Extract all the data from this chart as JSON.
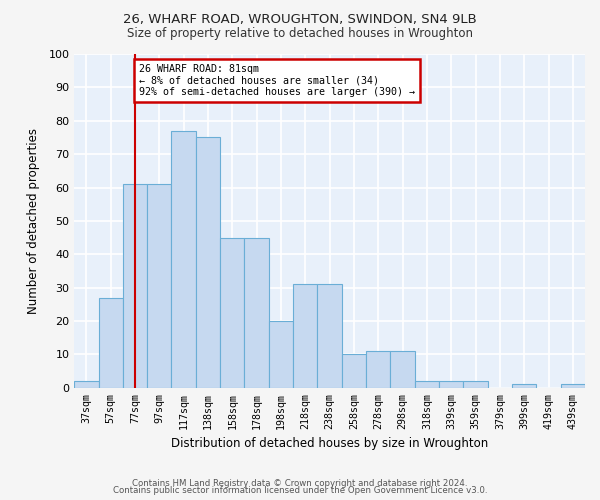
{
  "title1": "26, WHARF ROAD, WROUGHTON, SWINDON, SN4 9LB",
  "title2": "Size of property relative to detached houses in Wroughton",
  "xlabel": "Distribution of detached houses by size in Wroughton",
  "ylabel": "Number of detached properties",
  "categories": [
    "37sqm",
    "57sqm",
    "77sqm",
    "97sqm",
    "117sqm",
    "138sqm",
    "158sqm",
    "178sqm",
    "198sqm",
    "218sqm",
    "238sqm",
    "258sqm",
    "278sqm",
    "298sqm",
    "318sqm",
    "339sqm",
    "359sqm",
    "379sqm",
    "399sqm",
    "419sqm",
    "439sqm"
  ],
  "values": [
    2,
    27,
    61,
    61,
    77,
    75,
    45,
    45,
    20,
    31,
    31,
    10,
    11,
    11,
    2,
    2,
    2,
    0,
    1,
    0,
    1
  ],
  "bar_color": "#c6d9f0",
  "bar_edge_color": "#6aaed6",
  "plot_bg_color": "#e8f0fa",
  "fig_bg_color": "#f5f5f5",
  "grid_color": "#ffffff",
  "vline_x_index": 2,
  "vline_color": "#cc0000",
  "annotation_text": "26 WHARF ROAD: 81sqm\n← 8% of detached houses are smaller (34)\n92% of semi-detached houses are larger (390) →",
  "ylim": [
    0,
    100
  ],
  "yticks": [
    0,
    10,
    20,
    30,
    40,
    50,
    60,
    70,
    80,
    90,
    100
  ],
  "footer1": "Contains HM Land Registry data © Crown copyright and database right 2024.",
  "footer2": "Contains public sector information licensed under the Open Government Licence v3.0."
}
